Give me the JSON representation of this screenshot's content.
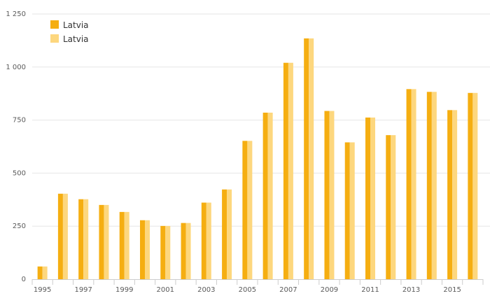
{
  "chart_data": {
    "type": "bar",
    "categories": [
      "1995",
      "1996",
      "1997",
      "1998",
      "1999",
      "2000",
      "2001",
      "2002",
      "2003",
      "2004",
      "2005",
      "2006",
      "2007",
      "2008",
      "2009",
      "2010",
      "2011",
      "2012",
      "2013",
      "2014",
      "2015",
      "2016"
    ],
    "x_tick_labels": [
      "1995",
      "1997",
      "1999",
      "2001",
      "2003",
      "2005",
      "2007",
      "2009",
      "2011",
      "2013",
      "2015"
    ],
    "series": [
      {
        "name": "Latvia",
        "color": "#f5ae11",
        "values": [
          60,
          403,
          377,
          350,
          317,
          278,
          251,
          265,
          361,
          423,
          652,
          785,
          1020,
          1135,
          793,
          645,
          762,
          679,
          896,
          883,
          797,
          878
        ]
      },
      {
        "name": "Latvia",
        "color": "#fdd77e",
        "values": [
          60,
          403,
          377,
          350,
          317,
          278,
          251,
          265,
          361,
          423,
          652,
          785,
          1020,
          1135,
          793,
          645,
          762,
          679,
          896,
          883,
          797,
          878
        ]
      }
    ],
    "y_ticks": [
      0,
      250,
      500,
      750,
      1000,
      1250
    ],
    "y_tick_labels": [
      "0",
      "250",
      "500",
      "750",
      "1 000",
      "1 250"
    ],
    "ylim": [
      0,
      1250
    ],
    "grid": true,
    "legend_position": "top-left"
  }
}
